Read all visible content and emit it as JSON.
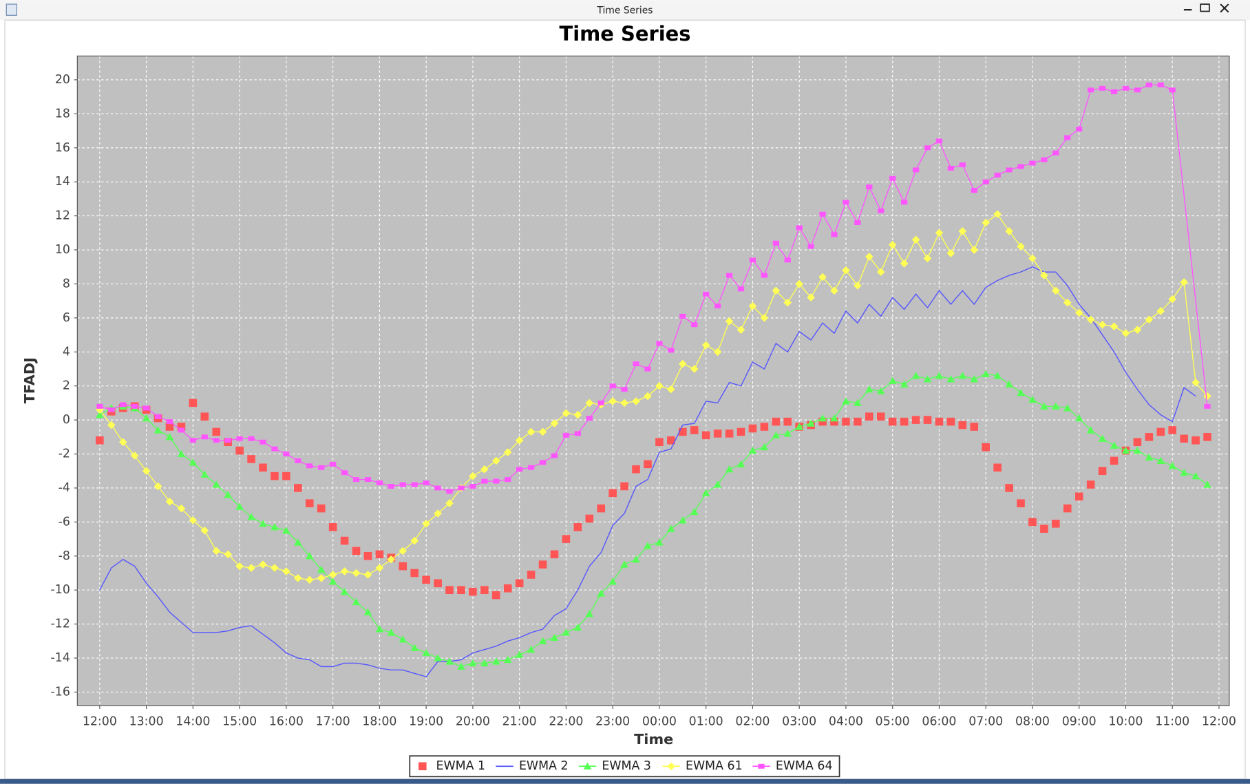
{
  "window": {
    "title": "Time Series"
  },
  "chart_data": {
    "type": "line",
    "title": "Time Series",
    "x_label": "Time",
    "y_label": "TFADJ",
    "grid": true,
    "legend": "bottom",
    "xlim": [
      11.52,
      36.22
    ],
    "ylim": [
      -16.8,
      21.4
    ],
    "yticks": [
      -16,
      -14,
      -12,
      -10,
      -8,
      -6,
      -4,
      -2,
      0,
      2,
      4,
      6,
      8,
      10,
      12,
      14,
      16,
      18,
      20
    ],
    "xticks": [
      {
        "value": 12,
        "label": "12:00"
      },
      {
        "value": 13,
        "label": "13:00"
      },
      {
        "value": 14,
        "label": "14:00"
      },
      {
        "value": 15,
        "label": "15:00"
      },
      {
        "value": 16,
        "label": "16:00"
      },
      {
        "value": 17,
        "label": "17:00"
      },
      {
        "value": 18,
        "label": "18:00"
      },
      {
        "value": 19,
        "label": "19:00"
      },
      {
        "value": 20,
        "label": "20:00"
      },
      {
        "value": 21,
        "label": "21:00"
      },
      {
        "value": 22,
        "label": "22:00"
      },
      {
        "value": 23,
        "label": "23:00"
      },
      {
        "value": 24,
        "label": "00:00"
      },
      {
        "value": 25,
        "label": "01:00"
      },
      {
        "value": 26,
        "label": "02:00"
      },
      {
        "value": 27,
        "label": "03:00"
      },
      {
        "value": 28,
        "label": "04:00"
      },
      {
        "value": 29,
        "label": "05:00"
      },
      {
        "value": 30,
        "label": "06:00"
      },
      {
        "value": 31,
        "label": "07:00"
      },
      {
        "value": 32,
        "label": "08:00"
      },
      {
        "value": 33,
        "label": "09:00"
      },
      {
        "value": 34,
        "label": "10:00"
      },
      {
        "value": 35,
        "label": "11:00"
      },
      {
        "value": 36,
        "label": "12:00"
      }
    ],
    "x": [
      12,
      12.25,
      12.5,
      12.75,
      13,
      13.25,
      13.5,
      13.75,
      14,
      14.25,
      14.5,
      14.75,
      15,
      15.25,
      15.5,
      15.75,
      16,
      16.25,
      16.5,
      16.75,
      17,
      17.25,
      17.5,
      17.75,
      18,
      18.25,
      18.5,
      18.75,
      19,
      19.25,
      19.5,
      19.75,
      20,
      20.25,
      20.5,
      20.75,
      21,
      21.25,
      21.5,
      21.75,
      22,
      22.25,
      22.5,
      22.75,
      23,
      23.25,
      23.5,
      23.75,
      24,
      24.25,
      24.5,
      24.75,
      25,
      25.25,
      25.5,
      25.75,
      26,
      26.25,
      26.5,
      26.75,
      27,
      27.25,
      27.5,
      27.75,
      28,
      28.25,
      28.5,
      28.75,
      29,
      29.25,
      29.5,
      29.75,
      30,
      30.25,
      30.5,
      30.75,
      31,
      31.25,
      31.5,
      31.75,
      32,
      32.25,
      32.5,
      32.75,
      33,
      33.25,
      33.5,
      33.75,
      34,
      34.25,
      34.5,
      34.75,
      35,
      35.25,
      35.5,
      35.75
    ],
    "series": [
      {
        "name": "EWMA 1",
        "color": "#ff5555",
        "marker": "square",
        "line": false,
        "values": [
          -1.2,
          0.5,
          0.7,
          0.8,
          0.6,
          0.1,
          -0.4,
          -0.4,
          1.0,
          0.2,
          -0.7,
          -1.3,
          -1.8,
          -2.3,
          -2.8,
          -3.3,
          -3.3,
          -4.0,
          -4.9,
          -5.2,
          -6.3,
          -7.1,
          -7.7,
          -8.0,
          -7.9,
          -8.1,
          -8.6,
          -9.0,
          -9.4,
          -9.6,
          -10.0,
          -10.0,
          -10.1,
          -10.0,
          -10.3,
          -9.9,
          -9.6,
          -9.1,
          -8.5,
          -7.9,
          -7.0,
          -6.3,
          -5.8,
          -5.2,
          -4.3,
          -3.9,
          -2.9,
          -2.6,
          -1.3,
          -1.2,
          -0.7,
          -0.6,
          -0.9,
          -0.8,
          -0.8,
          -0.7,
          -0.5,
          -0.4,
          -0.1,
          -0.1,
          -0.4,
          -0.3,
          -0.1,
          -0.1,
          -0.1,
          -0.1,
          0.2,
          0.2,
          -0.1,
          -0.1,
          0.0,
          0.0,
          -0.1,
          -0.1,
          -0.3,
          -0.4,
          -1.6,
          -2.8,
          -4.0,
          -4.9,
          -6.0,
          -6.4,
          -6.1,
          -5.2,
          -4.5,
          -3.8,
          -3.0,
          -2.4,
          -1.8,
          -1.3,
          -1.0,
          -0.7,
          -0.6,
          -1.1,
          -1.2,
          -1.0
        ]
      },
      {
        "name": "EWMA 2",
        "color": "#5555ff",
        "marker": "none",
        "line": true,
        "values": [
          -10.0,
          -8.7,
          -8.2,
          -8.6,
          -9.6,
          -10.4,
          -11.3,
          -11.9,
          -12.5,
          -12.5,
          -12.5,
          -12.4,
          -12.2,
          -12.1,
          -12.6,
          -13.1,
          -13.7,
          -14.0,
          -14.1,
          -14.5,
          -14.5,
          -14.3,
          -14.3,
          -14.4,
          -14.6,
          -14.7,
          -14.7,
          -14.9,
          -15.1,
          -14.2,
          -14.2,
          -14.1,
          -13.7,
          -13.5,
          -13.3,
          -13.0,
          -12.8,
          -12.5,
          -12.3,
          -11.5,
          -11.1,
          -10.0,
          -8.6,
          -7.8,
          -6.2,
          -5.5,
          -3.9,
          -3.5,
          -1.9,
          -1.7,
          -0.3,
          -0.2,
          1.1,
          1.0,
          2.2,
          2.0,
          3.4,
          3.0,
          4.5,
          4.0,
          5.2,
          4.7,
          5.7,
          5.1,
          6.4,
          5.7,
          6.8,
          6.1,
          7.2,
          6.5,
          7.4,
          6.6,
          7.6,
          6.8,
          7.6,
          6.8,
          7.8,
          8.2,
          8.5,
          8.7,
          9.0,
          8.7,
          8.7,
          7.9,
          6.8,
          6.0,
          5.0,
          4.0,
          2.8,
          1.8,
          0.9,
          0.3,
          -0.1,
          1.9,
          1.4,
          null
        ]
      },
      {
        "name": "EWMA 3",
        "color": "#55ff55",
        "marker": "triangle",
        "line": true,
        "values": [
          0.3,
          0.7,
          0.8,
          0.7,
          0.1,
          -0.6,
          -1.0,
          -2.0,
          -2.5,
          -3.2,
          -3.8,
          -4.4,
          -5.1,
          -5.7,
          -6.1,
          -6.3,
          -6.5,
          -7.2,
          -8.0,
          -8.8,
          -9.5,
          -10.1,
          -10.7,
          -11.3,
          -12.3,
          -12.5,
          -12.9,
          -13.4,
          -13.7,
          -14.0,
          -14.2,
          -14.5,
          -14.3,
          -14.3,
          -14.2,
          -14.1,
          -13.8,
          -13.5,
          -13.0,
          -12.8,
          -12.5,
          -12.2,
          -11.4,
          -10.2,
          -9.5,
          -8.5,
          -8.2,
          -7.4,
          -7.2,
          -6.4,
          -5.9,
          -5.4,
          -4.3,
          -3.8,
          -2.9,
          -2.6,
          -1.8,
          -1.6,
          -0.9,
          -0.8,
          -0.4,
          -0.2,
          0.1,
          0.1,
          1.1,
          1.0,
          1.8,
          1.7,
          2.3,
          2.1,
          2.6,
          2.4,
          2.6,
          2.4,
          2.6,
          2.4,
          2.7,
          2.6,
          2.1,
          1.6,
          1.2,
          0.8,
          0.8,
          0.7,
          0.1,
          -0.6,
          -1.1,
          -1.5,
          -1.8,
          -1.8,
          -2.2,
          -2.4,
          -2.7,
          -3.1,
          -3.3,
          -3.8
        ]
      },
      {
        "name": "EWMA 61",
        "color": "#ffff55",
        "marker": "diamond",
        "line": true,
        "values": [
          0.6,
          -0.3,
          -1.3,
          -2.1,
          -3.0,
          -3.9,
          -4.8,
          -5.2,
          -5.9,
          -6.5,
          -7.7,
          -7.9,
          -8.6,
          -8.7,
          -8.5,
          -8.7,
          -8.9,
          -9.3,
          -9.4,
          -9.3,
          -9.1,
          -8.9,
          -9.0,
          -9.1,
          -8.7,
          -8.2,
          -7.7,
          -7.1,
          -6.1,
          -5.5,
          -4.9,
          -4.0,
          -3.3,
          -2.9,
          -2.4,
          -1.9,
          -1.2,
          -0.7,
          -0.7,
          -0.2,
          0.4,
          0.3,
          1.0,
          0.9,
          1.1,
          1.0,
          1.1,
          1.4,
          2.0,
          1.8,
          3.3,
          3.0,
          4.4,
          4.0,
          5.8,
          5.3,
          6.7,
          6.0,
          7.6,
          6.9,
          8.0,
          7.2,
          8.4,
          7.6,
          8.8,
          7.9,
          9.6,
          8.7,
          10.3,
          9.2,
          10.6,
          9.5,
          11.0,
          9.8,
          11.1,
          10.0,
          11.6,
          12.1,
          11.1,
          10.2,
          9.5,
          8.5,
          7.6,
          6.9,
          6.3,
          5.9,
          5.6,
          5.5,
          5.1,
          5.3,
          5.9,
          6.4,
          7.1,
          8.1,
          2.2,
          1.4
        ]
      },
      {
        "name": "EWMA 64",
        "color": "#ff55ff",
        "marker": "rect",
        "line": true,
        "x": [
          12,
          12.25,
          12.5,
          12.75,
          13,
          13.25,
          13.5,
          13.75,
          14,
          14.25,
          14.5,
          14.75,
          15,
          15.25,
          15.5,
          15.75,
          16,
          16.25,
          16.5,
          16.75,
          17,
          17.25,
          17.5,
          17.75,
          18,
          18.25,
          18.5,
          18.75,
          19,
          19.25,
          19.5,
          19.75,
          20,
          20.25,
          20.5,
          20.75,
          21,
          21.25,
          21.5,
          21.75,
          22,
          22.25,
          22.5,
          22.75,
          23,
          23.25,
          23.5,
          23.75,
          24,
          24.25,
          24.5,
          24.75,
          25,
          25.25,
          25.5,
          25.75,
          26,
          26.25,
          26.5,
          26.75,
          27,
          27.25,
          27.5,
          27.75,
          28,
          28.25,
          28.5,
          28.75,
          29,
          29.25,
          29.5,
          29.75,
          30,
          30.25,
          30.5,
          30.75,
          31,
          31.25,
          31.5,
          31.75,
          32,
          32.25,
          32.5,
          32.75,
          33,
          33.25,
          33.5,
          33.75,
          34,
          34.25,
          34.5,
          34.75,
          35,
          35.75
        ],
        "values": [
          0.8,
          0.6,
          0.9,
          0.8,
          0.7,
          0.2,
          -0.1,
          -0.6,
          -1.2,
          -1.0,
          -1.2,
          -1.2,
          -1.1,
          -1.1,
          -1.3,
          -1.7,
          -2.0,
          -2.4,
          -2.7,
          -2.8,
          -2.6,
          -3.1,
          -3.5,
          -3.5,
          -3.7,
          -3.9,
          -3.8,
          -3.8,
          -3.7,
          -4.0,
          -4.2,
          -4.0,
          -3.9,
          -3.6,
          -3.6,
          -3.5,
          -2.9,
          -2.8,
          -2.5,
          -2.1,
          -0.9,
          -0.8,
          0.1,
          1.0,
          2.0,
          1.8,
          3.3,
          3.0,
          4.5,
          4.1,
          6.1,
          5.6,
          7.4,
          6.7,
          8.5,
          7.7,
          9.4,
          8.5,
          10.4,
          9.4,
          11.3,
          10.2,
          12.1,
          10.9,
          12.8,
          11.6,
          13.7,
          12.3,
          14.2,
          12.8,
          14.7,
          16.0,
          16.4,
          14.8,
          15.0,
          13.5,
          14.0,
          14.4,
          14.7,
          14.9,
          15.1,
          15.3,
          15.7,
          16.6,
          17.1,
          19.4,
          19.5,
          19.3,
          19.5,
          19.4,
          19.7,
          19.7,
          19.4,
          0.8
        ]
      }
    ]
  }
}
